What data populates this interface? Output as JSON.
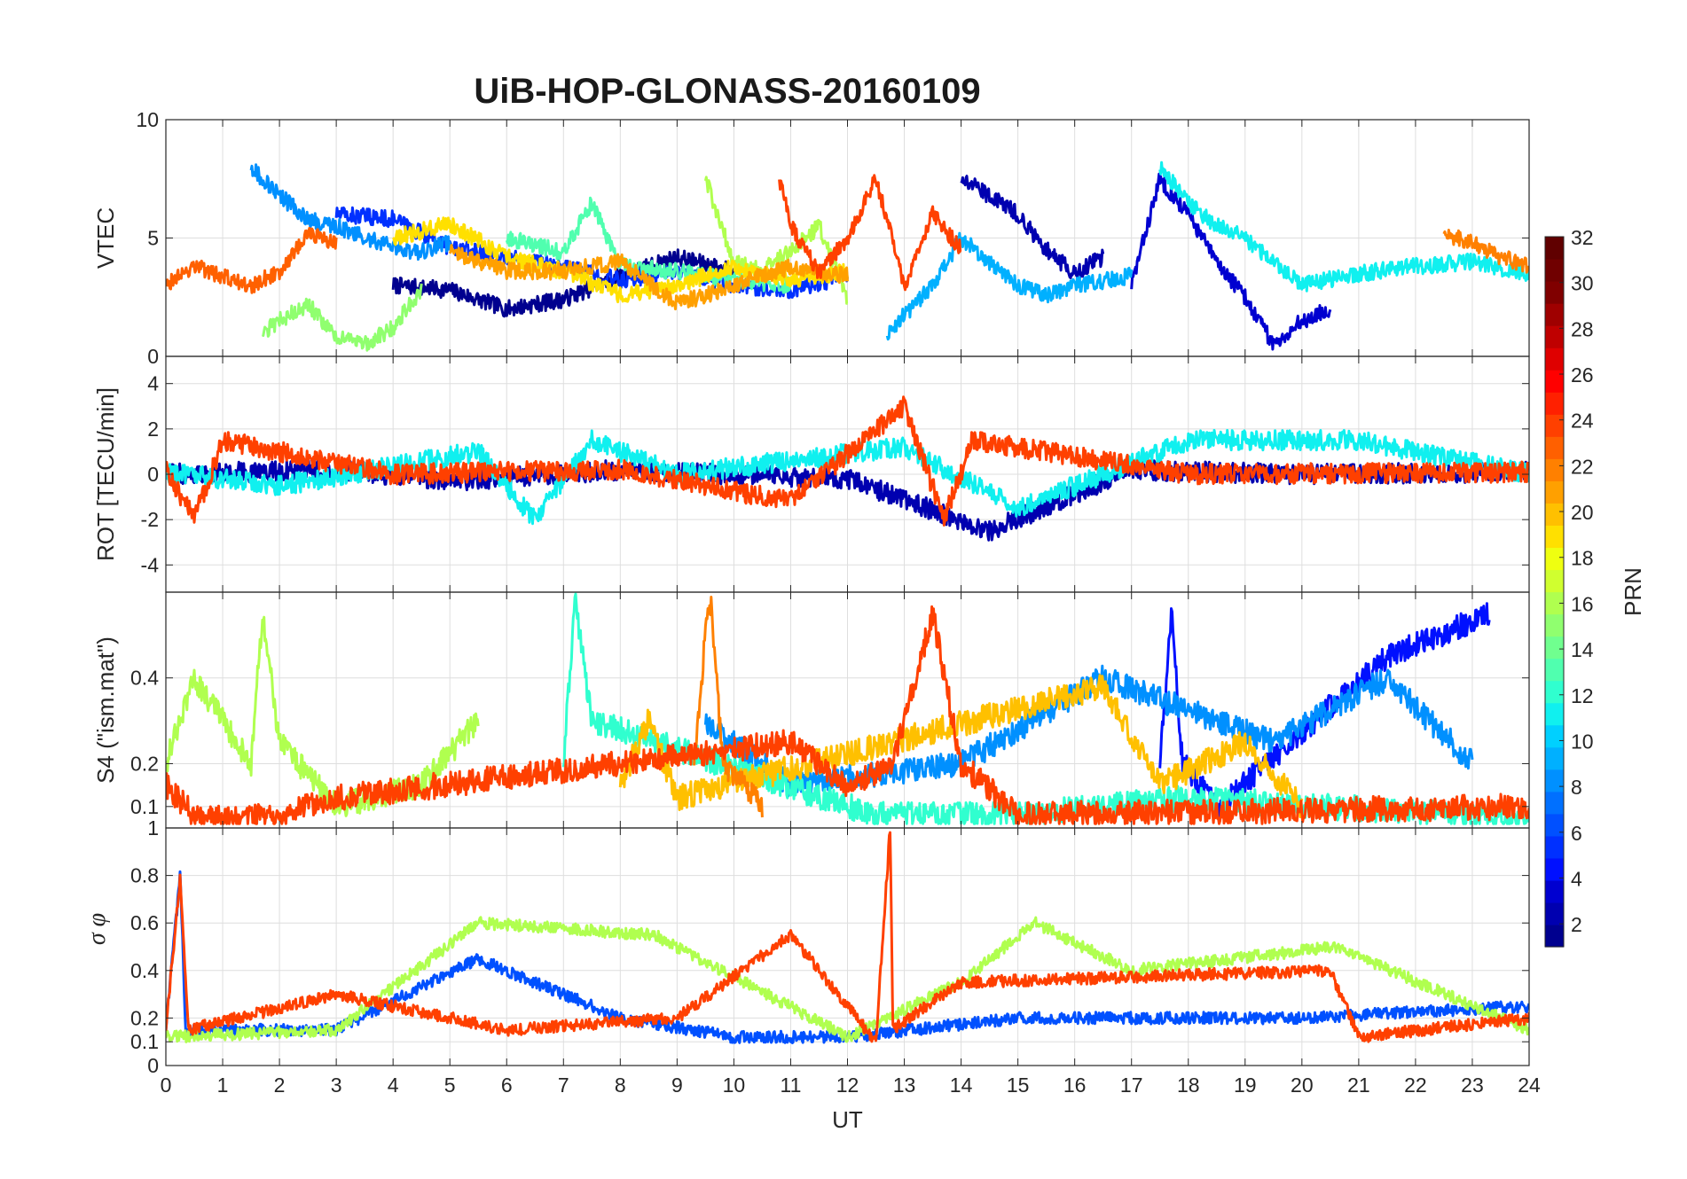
{
  "chart_data": [
    {
      "type": "line",
      "panel": "vtec",
      "title": "UiB-HOP-GLONASS-20160109",
      "ylabel": "VTEC",
      "xlim": [
        0,
        24
      ],
      "ylim": [
        0,
        10
      ],
      "yticks": [
        0,
        5,
        10
      ],
      "xticks": [
        0,
        1,
        2,
        3,
        4,
        5,
        6,
        7,
        8,
        9,
        10,
        11,
        12,
        13,
        14,
        15,
        16,
        17,
        18,
        19,
        20,
        21,
        22,
        23,
        24
      ],
      "grid": true,
      "series": [
        {
          "prn": 1,
          "x": [
            4.0,
            5.0,
            6.0,
            7.0,
            8.0,
            9.0,
            10.0
          ],
          "y": [
            3.0,
            2.8,
            2.0,
            2.4,
            3.4,
            4.2,
            3.6
          ]
        },
        {
          "prn": 2,
          "x": [
            14.0,
            14.5,
            15.0,
            15.5,
            16.0,
            16.5
          ],
          "y": [
            7.5,
            6.8,
            6.0,
            4.5,
            3.5,
            4.2
          ]
        },
        {
          "prn": 3,
          "x": [
            17.0,
            17.5,
            18.0,
            18.5,
            19.0,
            19.5,
            20.0,
            20.5
          ],
          "y": [
            3.0,
            7.5,
            6.0,
            4.0,
            2.5,
            0.5,
            1.5,
            2.0
          ]
        },
        {
          "prn": 5,
          "x": [
            3.0,
            4.0,
            5.0,
            6.0,
            7.0,
            8.0,
            9.0,
            10.0,
            11.0,
            12.0
          ],
          "y": [
            6.0,
            5.8,
            4.6,
            4.2,
            3.8,
            3.2,
            3.6,
            3.0,
            2.8,
            3.4
          ]
        },
        {
          "prn": 8,
          "x": [
            1.5,
            2.0,
            2.5,
            3.0,
            3.5,
            4.0,
            4.5,
            5.0
          ],
          "y": [
            8.0,
            6.8,
            5.8,
            5.5,
            5.0,
            4.6,
            4.4,
            4.8
          ]
        },
        {
          "prn": 9,
          "x": [
            12.7,
            13.5,
            14.0,
            14.5,
            15.0,
            15.5,
            16.0,
            17.0
          ],
          "y": [
            1.0,
            3.0,
            5.0,
            4.0,
            3.0,
            2.6,
            3.0,
            3.4
          ]
        },
        {
          "prn": 11,
          "x": [
            17.5,
            18.0,
            18.5,
            19.0,
            20.0,
            21.0,
            22.0,
            23.0,
            24.0
          ],
          "y": [
            8.0,
            6.5,
            5.5,
            5.0,
            3.0,
            3.5,
            3.8,
            4.0,
            3.5
          ]
        },
        {
          "prn": 13,
          "x": [
            6.0,
            7.0,
            7.5,
            8.0,
            9.0,
            10.0,
            11.0
          ],
          "y": [
            5.0,
            4.4,
            6.5,
            3.8,
            3.6,
            3.2,
            3.0
          ]
        },
        {
          "prn": 15,
          "x": [
            1.7,
            2.0,
            2.5,
            3.0,
            3.5,
            4.0,
            4.5
          ],
          "y": [
            1.0,
            1.5,
            2.2,
            0.8,
            0.5,
            1.2,
            2.8
          ]
        },
        {
          "prn": 16,
          "x": [
            9.5,
            10.0,
            10.5,
            11.0,
            11.5,
            12.0
          ],
          "y": [
            7.5,
            4.0,
            3.6,
            4.5,
            5.5,
            2.5
          ]
        },
        {
          "prn": 19,
          "x": [
            4.0,
            5.0,
            6.0,
            7.0,
            8.0,
            9.0,
            10.0,
            11.0,
            12.0
          ],
          "y": [
            5.0,
            5.6,
            4.2,
            3.6,
            2.6,
            3.0,
            3.8,
            3.2,
            3.6
          ]
        },
        {
          "prn": 21,
          "x": [
            5.0,
            6.0,
            7.0,
            8.0,
            9.0,
            10.0,
            11.0,
            12.0
          ],
          "y": [
            4.4,
            3.6,
            3.6,
            4.0,
            2.2,
            3.0,
            3.8,
            3.4
          ]
        },
        {
          "prn": 23,
          "x": [
            0.0,
            0.5,
            1.0,
            1.5,
            2.0,
            2.5,
            3.0
          ],
          "y": [
            3.0,
            3.8,
            3.4,
            3.0,
            3.6,
            5.2,
            4.8
          ]
        },
        {
          "prn": 24,
          "x": [
            10.8,
            11.0,
            11.5,
            12.0,
            12.5,
            13.0,
            13.5,
            14.0
          ],
          "y": [
            7.5,
            5.5,
            3.5,
            5.0,
            7.5,
            3.0,
            6.0,
            4.5
          ]
        },
        {
          "prn": 22,
          "x": [
            22.5,
            23.0,
            23.5,
            24.0
          ],
          "y": [
            5.2,
            4.8,
            4.2,
            3.8
          ]
        }
      ]
    },
    {
      "type": "line",
      "panel": "rot",
      "ylabel": "ROT [TECU/min]",
      "xlim": [
        0,
        24
      ],
      "ylim": [
        -5.2,
        5.2
      ],
      "yticks": [
        -4,
        -2,
        0,
        2,
        4
      ],
      "grid": true,
      "series": [
        {
          "prn": 2,
          "x": [
            0.0,
            3.0,
            5.0,
            8.0,
            10.0,
            12.0,
            14.5,
            17.0,
            20.0,
            24.0
          ],
          "y": [
            0.0,
            0.2,
            -0.3,
            0.2,
            0.0,
            -0.2,
            -2.5,
            0.2,
            0.0,
            0.1
          ]
        },
        {
          "prn": 11,
          "x": [
            0.0,
            2.0,
            5.5,
            6.5,
            7.5,
            9.0,
            13.0,
            15.0,
            18.0,
            21.0,
            24.0
          ],
          "y": [
            0.1,
            -0.5,
            1.0,
            -2.0,
            1.5,
            0.0,
            1.2,
            -1.5,
            1.5,
            1.5,
            0.0
          ]
        },
        {
          "prn": 24,
          "x": [
            0.0,
            0.5,
            1.0,
            4.0,
            8.0,
            11.0,
            13.0,
            13.7,
            14.2,
            18.0,
            24.0
          ],
          "y": [
            0.2,
            -2.0,
            1.5,
            0.0,
            0.2,
            -1.2,
            3.0,
            -2.0,
            1.5,
            0.0,
            0.1
          ]
        }
      ]
    },
    {
      "type": "line",
      "panel": "s4",
      "ylabel": "S4 (\"ism.mat\")",
      "xlim": [
        0,
        24
      ],
      "ylim": [
        0.05,
        0.6
      ],
      "yticks": [
        0.1,
        0.2,
        0.4
      ],
      "grid": true,
      "series": [
        {
          "prn": 4,
          "x": [
            17.5,
            17.7,
            17.9,
            18.5,
            21.5,
            23.3
          ],
          "y": [
            0.2,
            0.55,
            0.2,
            0.1,
            0.45,
            0.55
          ]
        },
        {
          "prn": 8,
          "x": [
            9.5,
            11.0,
            14.0,
            16.5,
            19.5,
            21.5,
            23.0
          ],
          "y": [
            0.3,
            0.15,
            0.2,
            0.4,
            0.25,
            0.4,
            0.2
          ]
        },
        {
          "prn": 12,
          "x": [
            7.0,
            7.2,
            7.5,
            12.5,
            15.0,
            18.0,
            24.0
          ],
          "y": [
            0.2,
            0.58,
            0.3,
            0.08,
            0.08,
            0.12,
            0.07
          ]
        },
        {
          "prn": 16,
          "x": [
            0.0,
            0.5,
            1.5,
            1.7,
            2.0,
            3.0,
            4.5,
            5.5
          ],
          "y": [
            0.2,
            0.4,
            0.2,
            0.55,
            0.25,
            0.1,
            0.15,
            0.3
          ]
        },
        {
          "prn": 20,
          "x": [
            8.0,
            8.5,
            9.0,
            16.5,
            17.5,
            19.0,
            20.0
          ],
          "y": [
            0.15,
            0.3,
            0.12,
            0.38,
            0.15,
            0.25,
            0.1
          ]
        },
        {
          "prn": 22,
          "x": [
            9.3,
            9.5,
            9.6,
            9.8,
            10.5
          ],
          "y": [
            0.2,
            0.5,
            0.58,
            0.2,
            0.1
          ]
        },
        {
          "prn": 24,
          "x": [
            0.0,
            0.5,
            1.0,
            2.0,
            3.0,
            11.0,
            12.0,
            12.8,
            13.5,
            14.0,
            15.0,
            24.0
          ],
          "y": [
            0.15,
            0.08,
            0.07,
            0.08,
            0.12,
            0.25,
            0.15,
            0.2,
            0.55,
            0.2,
            0.08,
            0.1
          ]
        }
      ]
    },
    {
      "type": "line",
      "panel": "sigma",
      "ylabel": "σ φ",
      "xlabel": "UT",
      "xlim": [
        0,
        24
      ],
      "ylim": [
        0,
        1
      ],
      "yticks": [
        0,
        0.1,
        0.2,
        0.4,
        0.6,
        0.8,
        1
      ],
      "grid": true,
      "series": [
        {
          "prn": 6,
          "x": [
            0.0,
            0.25,
            0.35,
            1.0,
            3.0,
            5.5,
            8.0,
            10.0,
            12.0,
            15.0,
            17.0,
            20.0,
            24.0
          ],
          "y": [
            0.15,
            0.8,
            0.15,
            0.15,
            0.15,
            0.45,
            0.2,
            0.12,
            0.12,
            0.2,
            0.2,
            0.2,
            0.25
          ]
        },
        {
          "prn": 16,
          "x": [
            0.0,
            3.0,
            5.5,
            8.6,
            12.0,
            14.0,
            15.3,
            17.0,
            20.6,
            24.0
          ],
          "y": [
            0.12,
            0.15,
            0.6,
            0.55,
            0.12,
            0.35,
            0.6,
            0.4,
            0.5,
            0.15
          ]
        },
        {
          "prn": 24,
          "x": [
            0.0,
            0.25,
            0.4,
            3.0,
            6.0,
            9.0,
            11.0,
            12.5,
            12.75,
            12.8,
            14.0,
            20.5,
            21.0,
            24.0
          ],
          "y": [
            0.15,
            0.78,
            0.15,
            0.3,
            0.15,
            0.2,
            0.55,
            0.1,
            1.0,
            0.15,
            0.35,
            0.4,
            0.12,
            0.2
          ]
        }
      ]
    }
  ],
  "colorbar": {
    "label": "PRN",
    "range": [
      1,
      32
    ],
    "ticks": [
      "2",
      "4",
      "6",
      "8",
      "10",
      "12",
      "14",
      "16",
      "18",
      "20",
      "22",
      "24",
      "26",
      "28",
      "30",
      "32"
    ],
    "colors": [
      "#00008f",
      "#0000b0",
      "#0000d0",
      "#0010ff",
      "#0030ff",
      "#0050ff",
      "#0070ff",
      "#0090ff",
      "#00b0ff",
      "#00d0ff",
      "#10f0ef",
      "#30ffcf",
      "#50ffaf",
      "#70ff8f",
      "#90ff6f",
      "#b0ff4f",
      "#d0ff2f",
      "#efff10",
      "#ffe000",
      "#ffc000",
      "#ffa000",
      "#ff8000",
      "#ff6000",
      "#ff4000",
      "#ff2000",
      "#ff0000",
      "#df0000",
      "#bf0000",
      "#9f0000",
      "#800000",
      "#700000",
      "#600000"
    ]
  }
}
